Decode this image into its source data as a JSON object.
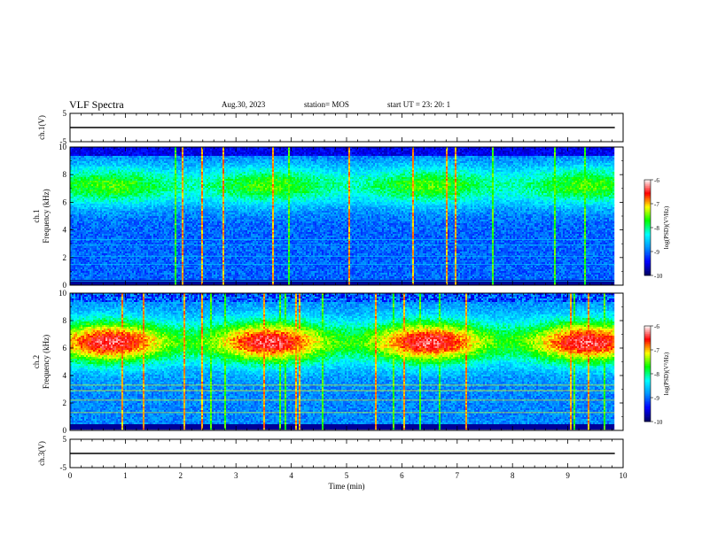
{
  "header": {
    "title": "VLF Spectra",
    "date": "Aug.30, 2023",
    "station": "station= MOS",
    "start_ut": "start  UT =   23: 20: 1"
  },
  "colors": {
    "colormap": [
      "#000060",
      "#0000ff",
      "#0090ff",
      "#00ffff",
      "#00ff00",
      "#ffff00",
      "#ff0000",
      "#ffffff"
    ],
    "trace": "#000000",
    "axes": "#000000"
  },
  "chart_data": [
    {
      "type": "line",
      "panel": "ch1-voltage",
      "ylabel": "ch.1(V)",
      "ylim": [
        -5,
        5
      ],
      "yticks": [
        5,
        -5
      ],
      "xlim": [
        0,
        10
      ],
      "x": [
        0,
        9.85
      ],
      "y": [
        0,
        0
      ]
    },
    {
      "type": "heatmap",
      "panel": "ch1-spectrogram",
      "ylabel": "ch.1\nFrequency (kHz)",
      "ylim": [
        0,
        10
      ],
      "yticks": [
        0,
        2,
        4,
        6,
        8,
        10
      ],
      "xlim": [
        0,
        10
      ],
      "data_extent_min": 9.85,
      "colorbar": {
        "label": "log(PSD)(V²/Hz)",
        "range": [
          -10,
          -6
        ],
        "ticks": [
          -6,
          -7,
          -8,
          -9,
          -10
        ]
      }
    },
    {
      "type": "heatmap",
      "panel": "ch2-spectrogram",
      "ylabel": "ch.2\nFrequency (kHz)",
      "ylim": [
        0,
        10
      ],
      "yticks": [
        0,
        2,
        4,
        6,
        8,
        10
      ],
      "xlim": [
        0,
        10
      ],
      "data_extent_min": 9.85,
      "colorbar": {
        "label": "log(PSD)(V²/Hz)",
        "range": [
          -10,
          -6
        ],
        "ticks": [
          -6,
          -7,
          -8,
          -9,
          -10
        ]
      }
    },
    {
      "type": "line",
      "panel": "ch3-voltage",
      "ylabel": "ch.3(V)",
      "ylim": [
        -5,
        5
      ],
      "yticks": [
        5,
        -5
      ],
      "xlim": [
        0,
        10
      ],
      "x": [
        0,
        9.85
      ],
      "y": [
        0,
        0
      ],
      "xlabel": "Time (min)",
      "xticks": [
        0,
        1,
        2,
        3,
        4,
        5,
        6,
        7,
        8,
        9,
        10
      ]
    }
  ]
}
